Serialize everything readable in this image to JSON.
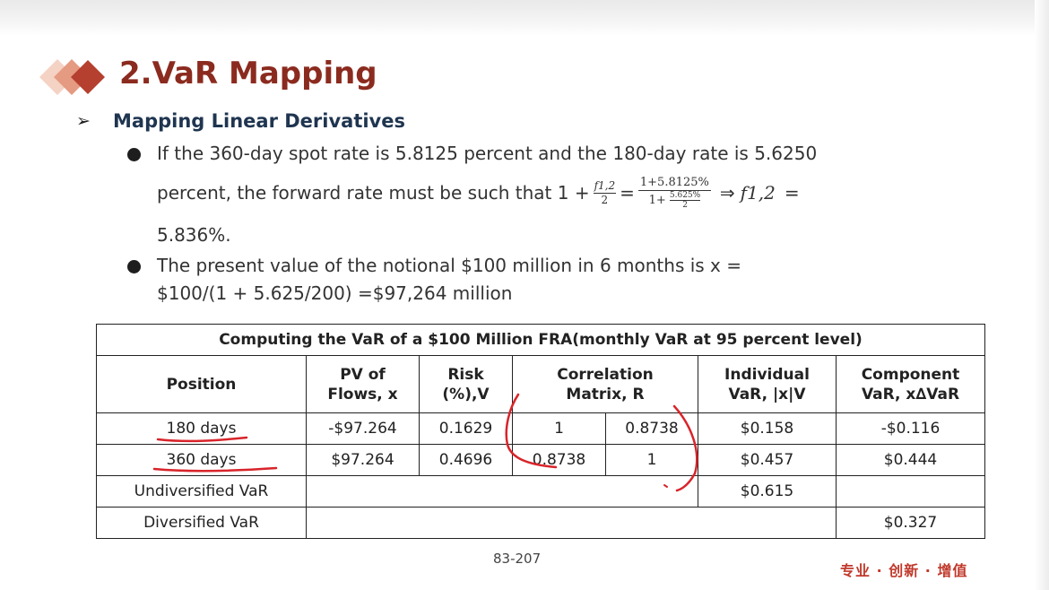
{
  "slide": {
    "title": "2.VaR Mapping",
    "subtitle": "Mapping Linear Derivatives",
    "bullet1_line1": "If the 360-day spot rate is 5.8125 percent and the 180-day rate is 5.6250",
    "bullet1_line2_prefix": "percent, the forward rate must be such that 1 +",
    "frac1_num": "f1,2",
    "frac1_den": "2",
    "eq": "=",
    "frac2_num": "1+5.8125%",
    "frac2_den_prefix": "1+",
    "frac2_den_num": "5.625%",
    "frac2_den_den": "2",
    "implies": "⇒",
    "f12": "f1,2",
    "eq2": "=",
    "bullet1_line3": "5.836%.",
    "bullet2_line1": "The present value of the notional $100 million in 6 months is x =",
    "bullet2_line2": "$100/(1 + 5.625/200) =$97,264 million",
    "page_number": "83-207",
    "brand": "专业 · 创新 · 增值"
  },
  "table": {
    "caption": "Computing the VaR of a $100 Million FRA(monthly VaR at 95 percent level)",
    "headers": {
      "position": "Position",
      "pv_line1": "PV of",
      "pv_line2": "Flows, x",
      "risk_line1": "Risk",
      "risk_line2": "(%),V",
      "corr_line1": "Correlation",
      "corr_line2": "Matrix, R",
      "ind_line1": "Individual",
      "ind_line2": "VaR, |x|V",
      "comp_line1": "Component",
      "comp_line2": "VaR, x∆VaR"
    },
    "rows": [
      {
        "position": "180 days",
        "pv": "-$97.264",
        "risk": "0.1629",
        "r1": "1",
        "r2": "0.8738",
        "ind": "$0.158",
        "comp": "-$0.116"
      },
      {
        "position": "360 days",
        "pv": "$97.264",
        "risk": "0.4696",
        "r1": "0.8738",
        "r2": "1",
        "ind": "$0.457",
        "comp": "$0.444"
      }
    ],
    "undiversified": {
      "label": "Undiversified VaR",
      "value": "$0.615"
    },
    "diversified": {
      "label": "Diversified VaR",
      "value": "$0.327"
    }
  },
  "colors": {
    "title": "#8b2b1f",
    "subtitle": "#1f3550",
    "annotation_ink": "#d8242a",
    "brand": "#c0392b"
  }
}
